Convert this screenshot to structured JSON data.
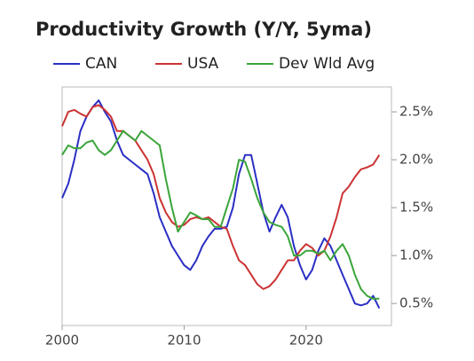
{
  "chart_data": {
    "type": "line",
    "title": "Productivity Growth (Y/Y, 5yma)",
    "x": [
      2000,
      2000.5,
      2001,
      2001.5,
      2002,
      2002.5,
      2003,
      2003.5,
      2004,
      2004.5,
      2005,
      2005.5,
      2006,
      2006.5,
      2007,
      2007.5,
      2008,
      2008.5,
      2009,
      2009.5,
      2010,
      2010.5,
      2011,
      2011.5,
      2012,
      2012.5,
      2013,
      2013.5,
      2014,
      2014.5,
      2015,
      2015.5,
      2016,
      2016.5,
      2017,
      2017.5,
      2018,
      2018.5,
      2019,
      2019.5,
      2020,
      2020.5,
      2021,
      2021.5,
      2022,
      2022.5,
      2023,
      2023.5,
      2024,
      2024.5,
      2025,
      2025.5,
      2026
    ],
    "series": [
      {
        "name": "CAN",
        "color": "#2b2fc4",
        "values": [
          1.6,
          1.75,
          2.0,
          2.3,
          2.45,
          2.55,
          2.62,
          2.5,
          2.4,
          2.2,
          2.05,
          2.0,
          1.95,
          1.9,
          1.85,
          1.65,
          1.4,
          1.25,
          1.1,
          1.0,
          0.9,
          0.85,
          0.95,
          1.1,
          1.2,
          1.28,
          1.28,
          1.3,
          1.5,
          1.85,
          2.05,
          2.05,
          1.75,
          1.45,
          1.25,
          1.4,
          1.53,
          1.4,
          1.1,
          0.9,
          0.75,
          0.85,
          1.05,
          1.18,
          1.1,
          0.95,
          0.8,
          0.65,
          0.5,
          0.48,
          0.5,
          0.58,
          0.45
        ]
      },
      {
        "name": "USA",
        "color": "#cc3333",
        "values": [
          2.35,
          2.5,
          2.52,
          2.48,
          2.45,
          2.55,
          2.57,
          2.52,
          2.45,
          2.3,
          2.3,
          2.25,
          2.2,
          2.1,
          2.0,
          1.85,
          1.6,
          1.45,
          1.35,
          1.3,
          1.32,
          1.38,
          1.4,
          1.38,
          1.4,
          1.35,
          1.3,
          1.28,
          1.1,
          0.95,
          0.9,
          0.8,
          0.7,
          0.65,
          0.68,
          0.75,
          0.85,
          0.95,
          0.95,
          1.05,
          1.12,
          1.08,
          1.0,
          1.05,
          1.2,
          1.4,
          1.65,
          1.72,
          1.82,
          1.9,
          1.92,
          1.95,
          2.05
        ]
      },
      {
        "name": "Dev Wld Avg",
        "color": "#3aa53a",
        "values": [
          2.05,
          2.15,
          2.12,
          2.12,
          2.18,
          2.2,
          2.1,
          2.05,
          2.1,
          2.2,
          2.3,
          2.25,
          2.2,
          2.3,
          2.25,
          2.2,
          2.15,
          1.8,
          1.5,
          1.25,
          1.35,
          1.45,
          1.42,
          1.38,
          1.38,
          1.3,
          1.3,
          1.5,
          1.7,
          2.0,
          1.98,
          1.8,
          1.6,
          1.45,
          1.35,
          1.32,
          1.3,
          1.2,
          1.0,
          1.0,
          1.05,
          1.05,
          1.02,
          1.05,
          0.95,
          1.05,
          1.12,
          1.0,
          0.8,
          0.65,
          0.58,
          0.55,
          0.55
        ]
      }
    ],
    "xlim": [
      2000,
      2027
    ],
    "ylim": [
      0.27,
      2.76
    ],
    "xticks": [
      2000,
      2010,
      2020
    ],
    "yticks": [
      {
        "value": 0.5,
        "label": "0.5%"
      },
      {
        "value": 1.0,
        "label": "1.0%"
      },
      {
        "value": 1.5,
        "label": "1.5%"
      },
      {
        "value": 2.0,
        "label": "2.0%"
      },
      {
        "value": 2.5,
        "label": "2.5%"
      }
    ]
  }
}
